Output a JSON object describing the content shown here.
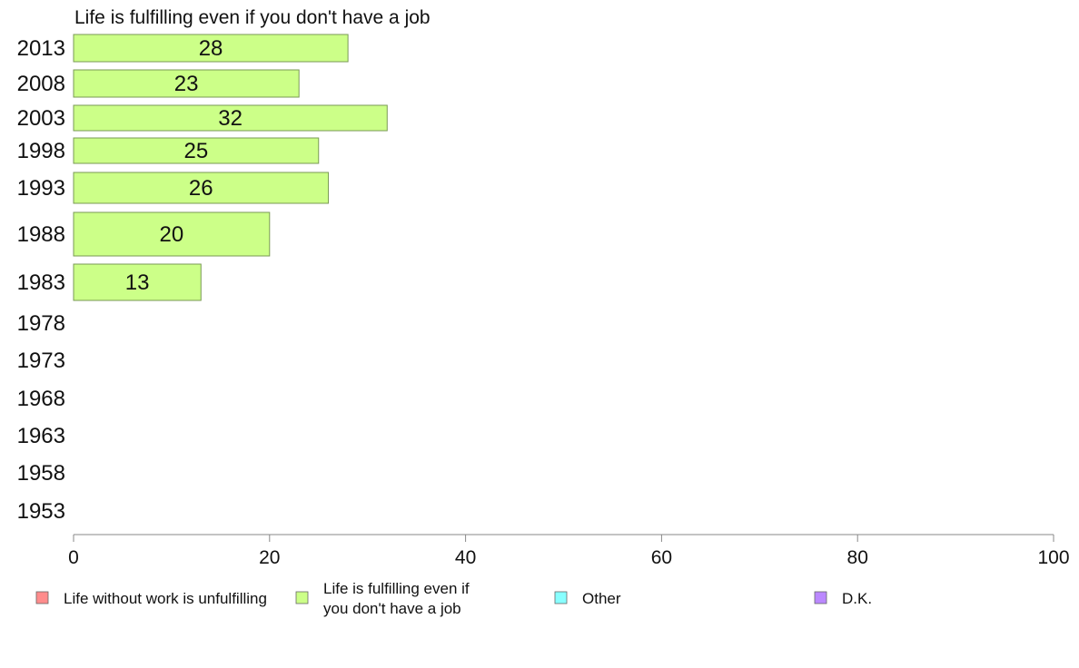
{
  "chart_data": {
    "type": "bar",
    "orientation": "horizontal",
    "title": "Life is fulfilling even if you don't have a job",
    "categories": [
      "2013",
      "2008",
      "2003",
      "1998",
      "1993",
      "1988",
      "1983",
      "1978",
      "1973",
      "1968",
      "1963",
      "1958",
      "1953"
    ],
    "series": [
      {
        "name": "Life is fulfilling even if you don't have a job",
        "color": "#ccff88",
        "values": [
          28,
          23,
          32,
          25,
          26,
          20,
          13,
          null,
          null,
          null,
          null,
          null,
          null
        ]
      }
    ],
    "xlim": [
      0,
      100
    ],
    "xticks": [
      "0",
      "20",
      "40",
      "60",
      "80",
      "100"
    ],
    "grid": false,
    "legend": {
      "placement": "bottom",
      "items": [
        {
          "label": "Life without work is unfulfilling",
          "color": "#ff8c8c"
        },
        {
          "label": "Life is fulfilling even if you don't have a job",
          "color": "#ccff88"
        },
        {
          "label": "Other",
          "color": "#88ffff"
        },
        {
          "label": "D.K.",
          "color": "#bb88ff"
        }
      ]
    }
  }
}
